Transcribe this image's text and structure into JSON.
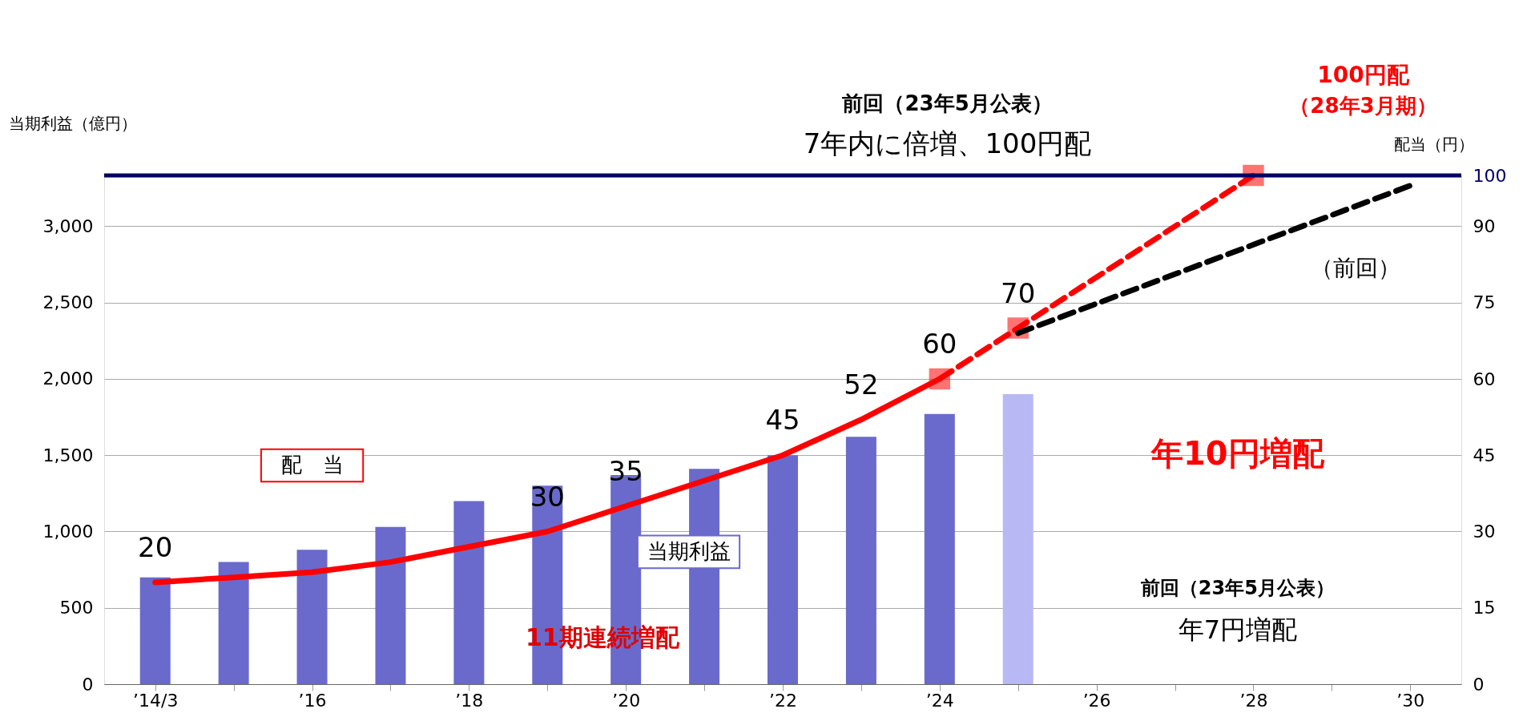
{
  "chart_data": {
    "type": "bar",
    "categories": [
      "’14/3",
      null,
      "’16",
      null,
      "’18",
      null,
      "’20",
      null,
      "’22",
      null,
      "’24",
      null,
      "’26",
      null,
      "’28",
      null,
      "’30"
    ],
    "ylabel": "当期利益（億円）",
    "y2label": "配当（円）",
    "ylim": [
      0,
      3333
    ],
    "yticks": [
      0,
      500,
      {
        "value": 1000,
        "label": "1,000"
      },
      {
        "value": 1500,
        "label": "1,500"
      },
      {
        "value": 2000,
        "label": "2,000"
      },
      {
        "value": 2500,
        "label": "2,500"
      },
      {
        "value": 3000,
        "label": "3,000"
      }
    ],
    "y2lim": [
      0,
      100
    ],
    "y2ticks": [
      0,
      15,
      30,
      45,
      60,
      75,
      90,
      100
    ],
    "grid": "y",
    "series": [
      {
        "name": "当期利益",
        "color": "#6a6acc",
        "colors": [
          "#6a6acc",
          "#6a6acc",
          "#6a6acc",
          "#6a6acc",
          "#6a6acc",
          "#6a6acc",
          "#6a6acc",
          "#6a6acc",
          "#6a6acc",
          "#6a6acc",
          "#6a6acc",
          "#b8b8f4",
          null,
          null,
          null,
          null,
          null
        ],
        "values": [
          700,
          800,
          880,
          1030,
          1200,
          1300,
          1370,
          1410,
          1500,
          1620,
          1770,
          1900,
          null,
          null,
          null,
          null,
          null
        ]
      },
      {
        "name": "配　当",
        "type": "line",
        "axis": "y2",
        "color": "#ff0000",
        "line_style": "solid",
        "marker": "none",
        "values": [
          20,
          21,
          22,
          24,
          27,
          30,
          35,
          40,
          45,
          52,
          60,
          null,
          null,
          null,
          null,
          null,
          null
        ],
        "value_labels": [
          "20",
          null,
          null,
          null,
          null,
          "30",
          "35",
          null,
          "45",
          "52",
          "60",
          null,
          null,
          null,
          null,
          null,
          null
        ]
      },
      {
        "type": "line",
        "axis": "y2",
        "color": "#ff0000",
        "line_style": "dashed",
        "marker": "square",
        "values": [
          null,
          null,
          null,
          null,
          null,
          null,
          null,
          null,
          null,
          null,
          60,
          70,
          null,
          null,
          100,
          null,
          null
        ],
        "value_labels": [
          null,
          null,
          null,
          null,
          null,
          null,
          null,
          null,
          null,
          null,
          null,
          "70",
          null,
          null,
          null,
          null,
          null
        ]
      },
      {
        "type": "line",
        "axis": "y2",
        "color": "#000000",
        "line_style": "dashed",
        "marker": "none",
        "values": [
          null,
          null,
          null,
          null,
          null,
          null,
          null,
          null,
          null,
          null,
          null,
          69,
          null,
          null,
          null,
          null,
          98
        ]
      }
    ],
    "ref_lines": [
      {
        "axis": "y2",
        "value": 100,
        "color": "#000066"
      }
    ],
    "annotations": [
      "前回（23年5月公表）",
      "7年内に倍増、100円配",
      "100円配",
      "（28年3月期）",
      "（前回）",
      "年10円増配",
      "前回（23年5月公表）",
      "年7円増配",
      "11期連続増配"
    ]
  }
}
